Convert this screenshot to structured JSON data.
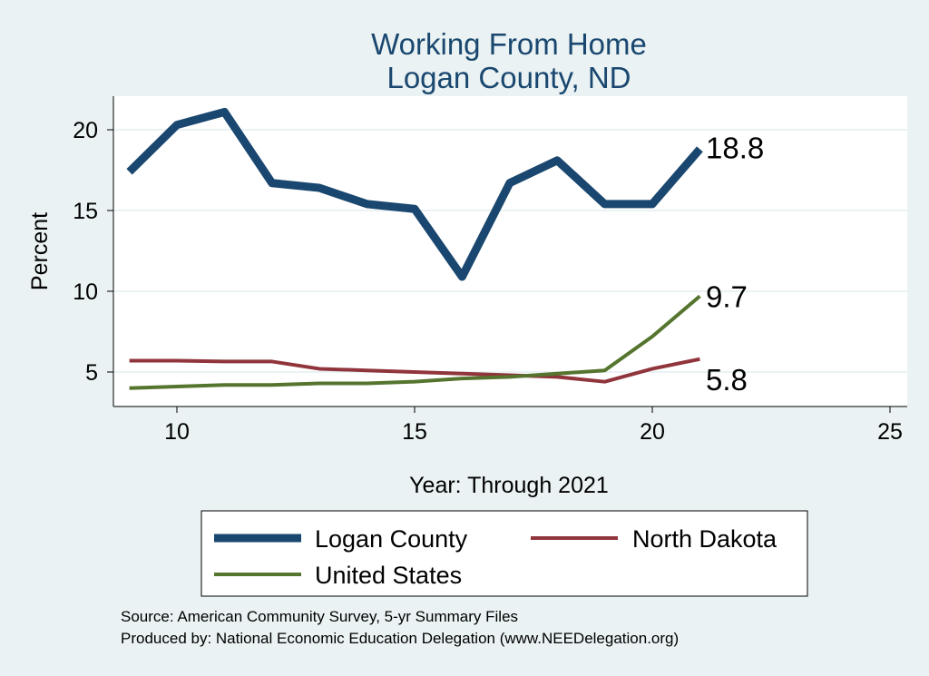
{
  "chart_data": {
    "type": "line",
    "title": "Working From Home",
    "subtitle": "Logan County, ND",
    "xlabel": "Year: Through 2021",
    "ylabel": "Percent",
    "xlim": [
      8.8,
      25.4
    ],
    "ylim": [
      3.6,
      22.1
    ],
    "xticks": [
      10,
      15,
      20,
      25
    ],
    "yticks": [
      5,
      10,
      15,
      20
    ],
    "grid": true,
    "legend_placement": "bottom",
    "x": [
      9,
      10,
      11,
      12,
      13,
      14,
      15,
      16,
      17,
      18,
      19,
      20,
      21
    ],
    "series": [
      {
        "name": "Logan County",
        "color": "#1a476f",
        "values": [
          17.4,
          20.3,
          21.1,
          16.7,
          16.4,
          15.4,
          15.1,
          10.9,
          16.7,
          18.1,
          15.4,
          15.4,
          18.8
        ],
        "end_label": "18.8"
      },
      {
        "name": "North Dakota",
        "color": "#90353b",
        "values": [
          5.7,
          5.7,
          5.65,
          5.65,
          5.2,
          5.1,
          5.0,
          4.9,
          4.8,
          4.7,
          4.4,
          5.2,
          5.8
        ],
        "end_label": "5.8"
      },
      {
        "name": "United States",
        "color": "#55752f",
        "values": [
          4.0,
          4.1,
          4.2,
          4.2,
          4.3,
          4.3,
          4.4,
          4.6,
          4.7,
          4.9,
          5.1,
          7.2,
          9.7
        ],
        "end_label": "9.7"
      }
    ],
    "notes": [
      "Source: American Community Survey, 5-yr Summary Files",
      "Produced by: National Economic Education Delegation (www.NEEDelegation.org)"
    ]
  }
}
